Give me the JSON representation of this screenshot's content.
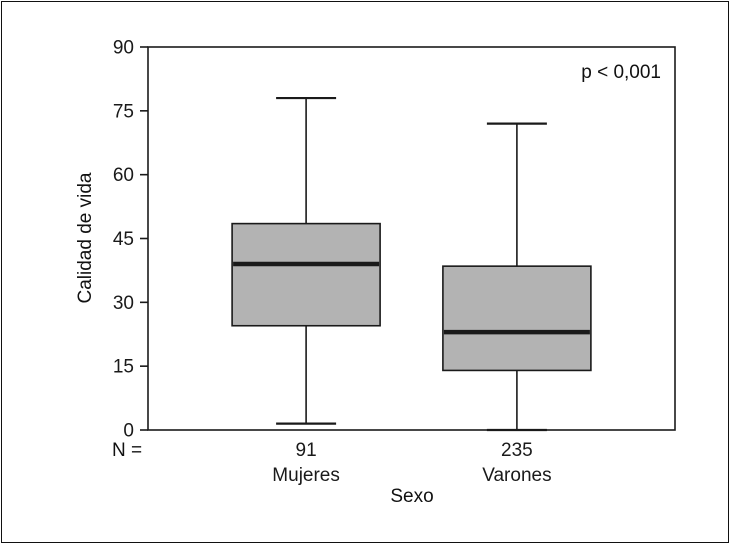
{
  "chart_data": {
    "type": "boxplot",
    "title": "",
    "xlabel": "Sexo",
    "ylabel": "Calidad de vida",
    "annotation": "p < 0,001",
    "n_prefix": "N =",
    "ylim": [
      0,
      90
    ],
    "yticks": [
      0,
      15,
      30,
      45,
      60,
      75,
      90
    ],
    "categories": [
      "Mujeres",
      "Varones"
    ],
    "series": [
      {
        "name": "Mujeres",
        "n": 91,
        "whisker_low": 1.5,
        "q1": 24.5,
        "median": 39,
        "q3": 48.5,
        "whisker_high": 78
      },
      {
        "name": "Varones",
        "n": 235,
        "whisker_low": 0,
        "q1": 14,
        "median": 23,
        "q3": 38.5,
        "whisker_high": 72
      }
    ],
    "grid": false,
    "legend": "none",
    "box_fill": "#b3b3b3",
    "line_color": "#1a1a1a"
  }
}
